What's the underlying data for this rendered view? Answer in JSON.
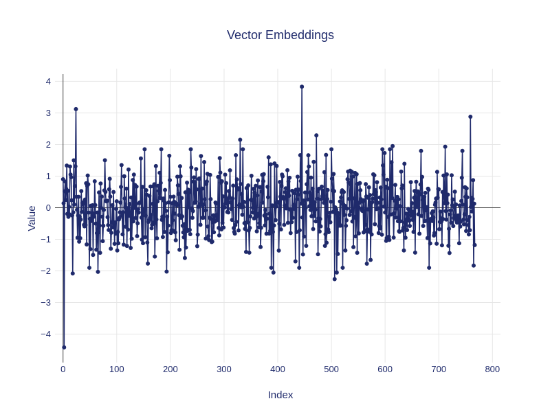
{
  "chart_data": {
    "type": "line",
    "title": "Vector Embeddings",
    "xlabel": "Index",
    "ylabel": "Value",
    "xlim": [
      -15,
      815
    ],
    "ylim": [
      -4.9,
      4.4
    ],
    "x_ticks": [
      0,
      100,
      200,
      300,
      400,
      500,
      600,
      700,
      800
    ],
    "y_ticks": [
      -4,
      -3,
      -2,
      -1,
      0,
      1,
      2,
      3,
      4
    ],
    "grid": true,
    "legend": "none",
    "markers": true,
    "color": "#1f2a6b",
    "series_length": 768,
    "notable_points": [
      {
        "x": 2,
        "y": -4.42
      },
      {
        "x": 24,
        "y": 3.12
      },
      {
        "x": 18,
        "y": -2.08
      },
      {
        "x": 65,
        "y": -2.03
      },
      {
        "x": 193,
        "y": -2.02
      },
      {
        "x": 330,
        "y": 2.15
      },
      {
        "x": 392,
        "y": -2.05
      },
      {
        "x": 445,
        "y": 3.83
      },
      {
        "x": 472,
        "y": 2.29
      },
      {
        "x": 506,
        "y": -2.26
      },
      {
        "x": 510,
        "y": -2.05
      },
      {
        "x": 614,
        "y": 1.95
      },
      {
        "x": 712,
        "y": 1.93
      },
      {
        "x": 759,
        "y": 2.88
      },
      {
        "x": 765,
        "y": -1.83
      }
    ]
  }
}
